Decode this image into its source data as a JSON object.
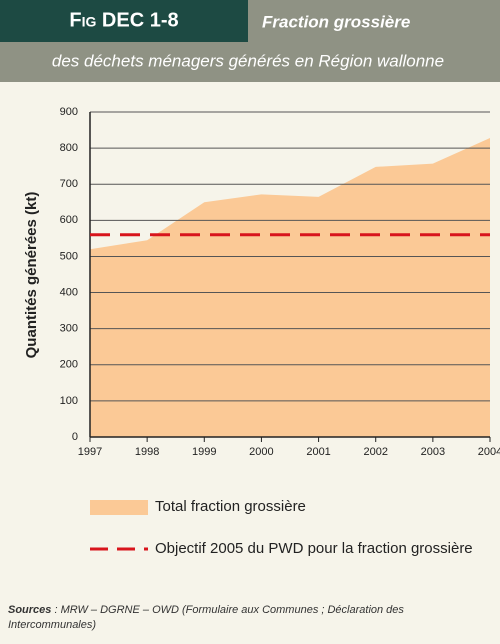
{
  "chart_data": {
    "type": "area",
    "figure_label": "Fig DEC 1-8",
    "title": "Fraction grossière",
    "subtitle": "des déchets ménagers générés en Région wallonne",
    "ylabel": "Quantités générées (kt)",
    "categories": [
      "1997",
      "1998",
      "1999",
      "2000",
      "2001",
      "2002",
      "2003",
      "2004"
    ],
    "series": [
      {
        "name": "Total fraction grossière",
        "color": "#fbc996",
        "values": [
          520,
          545,
          650,
          672,
          665,
          748,
          757,
          828
        ]
      }
    ],
    "reference_line": {
      "name": "Objectif 2005 du PWD pour la fraction grossière",
      "value": 560,
      "color": "#d8141c"
    },
    "ylim": [
      0,
      900
    ],
    "yticks": [
      0,
      100,
      200,
      300,
      400,
      500,
      600,
      700,
      800,
      900
    ],
    "grid": true,
    "source_label": "Sources",
    "source_text": " : MRW – DGRNE – OWD (Formulaire aux Communes ; Déclaration des Intercommunales)"
  }
}
